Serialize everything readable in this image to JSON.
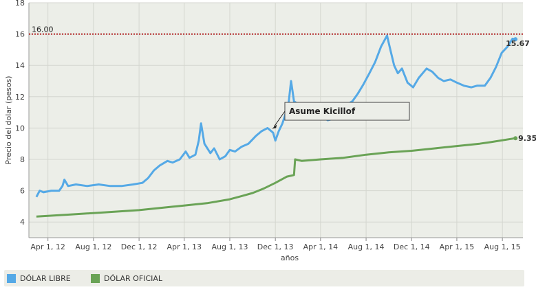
{
  "chart_data": {
    "type": "line",
    "ylabel": "Precio del dolar (pesos)",
    "xlabel": "años",
    "ylim": [
      3,
      18
    ],
    "yticks": [
      "4",
      "6",
      "8",
      "10",
      "12",
      "14",
      "16",
      "18"
    ],
    "xticks": [
      "Apr 1, 12",
      "Aug 1, 12",
      "Dec 1, 12",
      "Apr 1, 13",
      "Aug 1, 13",
      "Dec 1, 13",
      "Apr 1, 14",
      "Aug 1, 14",
      "Dec 1, 14",
      "Apr 1, 15",
      "Aug 1, 15"
    ],
    "grid": true,
    "reference_line": {
      "value": 16,
      "label": "16.00",
      "color": "#b22222"
    },
    "annotation": {
      "text": "Asume Kicillof",
      "date": "2013-11-20",
      "value": 10
    },
    "legend_position": "bottom",
    "series": [
      {
        "name": "DÓLAR LIBRE",
        "color": "#55a9e6",
        "end_label": "15.67",
        "points": [
          [
            "2012-03-01",
            5.6
          ],
          [
            "2012-03-10",
            6.0
          ],
          [
            "2012-03-20",
            5.9
          ],
          [
            "2012-04-10",
            6.0
          ],
          [
            "2012-05-01",
            6.0
          ],
          [
            "2012-05-10",
            6.3
          ],
          [
            "2012-05-15",
            6.7
          ],
          [
            "2012-05-25",
            6.3
          ],
          [
            "2012-06-15",
            6.4
          ],
          [
            "2012-07-15",
            6.3
          ],
          [
            "2012-08-15",
            6.4
          ],
          [
            "2012-09-15",
            6.3
          ],
          [
            "2012-10-15",
            6.3
          ],
          [
            "2012-11-15",
            6.4
          ],
          [
            "2012-12-10",
            6.5
          ],
          [
            "2012-12-25",
            6.8
          ],
          [
            "2013-01-10",
            7.3
          ],
          [
            "2013-01-25",
            7.6
          ],
          [
            "2013-02-15",
            7.9
          ],
          [
            "2013-03-01",
            7.8
          ],
          [
            "2013-03-20",
            8.0
          ],
          [
            "2013-04-05",
            8.5
          ],
          [
            "2013-04-15",
            8.1
          ],
          [
            "2013-05-01",
            8.3
          ],
          [
            "2013-05-10",
            9.2
          ],
          [
            "2013-05-16",
            10.3
          ],
          [
            "2013-05-25",
            9.0
          ],
          [
            "2013-06-10",
            8.4
          ],
          [
            "2013-06-20",
            8.7
          ],
          [
            "2013-07-05",
            8.0
          ],
          [
            "2013-07-20",
            8.2
          ],
          [
            "2013-08-01",
            8.6
          ],
          [
            "2013-08-15",
            8.5
          ],
          [
            "2013-09-01",
            8.8
          ],
          [
            "2013-09-20",
            9.0
          ],
          [
            "2013-10-10",
            9.5
          ],
          [
            "2013-10-25",
            9.8
          ],
          [
            "2013-11-10",
            10.0
          ],
          [
            "2013-11-25",
            9.7
          ],
          [
            "2013-12-01",
            9.2
          ],
          [
            "2013-12-10",
            9.8
          ],
          [
            "2013-12-20",
            10.3
          ],
          [
            "2014-01-05",
            11.5
          ],
          [
            "2014-01-12",
            13.0
          ],
          [
            "2014-01-20",
            11.7
          ],
          [
            "2014-02-10",
            11.4
          ],
          [
            "2014-02-25",
            10.8
          ],
          [
            "2014-03-15",
            11.0
          ],
          [
            "2014-04-01",
            10.8
          ],
          [
            "2014-04-20",
            10.5
          ],
          [
            "2014-05-10",
            10.6
          ],
          [
            "2014-05-25",
            11.3
          ],
          [
            "2014-06-10",
            11.5
          ],
          [
            "2014-06-25",
            11.7
          ],
          [
            "2014-07-10",
            12.2
          ],
          [
            "2014-07-25",
            12.8
          ],
          [
            "2014-08-10",
            13.5
          ],
          [
            "2014-08-25",
            14.2
          ],
          [
            "2014-09-10",
            15.2
          ],
          [
            "2014-09-26",
            15.9
          ],
          [
            "2014-10-05",
            15.0
          ],
          [
            "2014-10-15",
            14.0
          ],
          [
            "2014-10-25",
            13.5
          ],
          [
            "2014-11-05",
            13.8
          ],
          [
            "2014-11-20",
            12.9
          ],
          [
            "2014-12-05",
            12.6
          ],
          [
            "2014-12-20",
            13.2
          ],
          [
            "2015-01-10",
            13.8
          ],
          [
            "2015-01-25",
            13.6
          ],
          [
            "2015-02-10",
            13.2
          ],
          [
            "2015-02-25",
            13.0
          ],
          [
            "2015-03-15",
            13.1
          ],
          [
            "2015-04-01",
            12.9
          ],
          [
            "2015-04-20",
            12.7
          ],
          [
            "2015-05-10",
            12.6
          ],
          [
            "2015-05-25",
            12.7
          ],
          [
            "2015-06-15",
            12.7
          ],
          [
            "2015-06-30",
            13.2
          ],
          [
            "2015-07-15",
            13.9
          ],
          [
            "2015-07-30",
            14.8
          ],
          [
            "2015-08-15",
            15.2
          ],
          [
            "2015-08-28",
            15.7
          ],
          [
            "2015-09-05",
            15.67
          ]
        ]
      },
      {
        "name": "DÓLAR OFICIAL",
        "color": "#6aa356",
        "end_label": "9.35",
        "points": [
          [
            "2012-03-01",
            4.35
          ],
          [
            "2012-06-01",
            4.48
          ],
          [
            "2012-09-01",
            4.62
          ],
          [
            "2012-12-01",
            4.76
          ],
          [
            "2013-03-01",
            4.98
          ],
          [
            "2013-06-01",
            5.2
          ],
          [
            "2013-08-01",
            5.45
          ],
          [
            "2013-09-01",
            5.65
          ],
          [
            "2013-10-01",
            5.85
          ],
          [
            "2013-11-01",
            6.15
          ],
          [
            "2013-12-01",
            6.5
          ],
          [
            "2014-01-01",
            6.9
          ],
          [
            "2014-01-20",
            7.0
          ],
          [
            "2014-01-23",
            8.0
          ],
          [
            "2014-02-10",
            7.9
          ],
          [
            "2014-04-01",
            8.0
          ],
          [
            "2014-06-01",
            8.1
          ],
          [
            "2014-08-01",
            8.3
          ],
          [
            "2014-10-01",
            8.45
          ],
          [
            "2014-12-01",
            8.55
          ],
          [
            "2015-02-01",
            8.7
          ],
          [
            "2015-04-01",
            8.85
          ],
          [
            "2015-06-01",
            9.0
          ],
          [
            "2015-07-01",
            9.1
          ],
          [
            "2015-09-05",
            9.35
          ]
        ]
      }
    ]
  }
}
